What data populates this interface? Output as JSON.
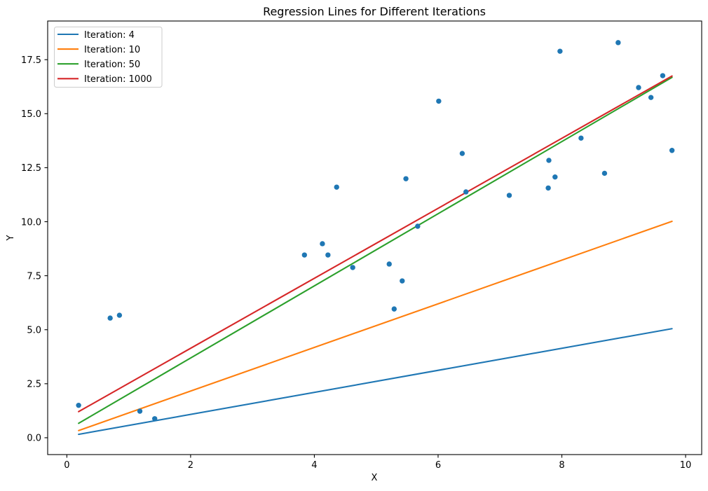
{
  "figure": {
    "background": "#ffffff"
  },
  "chart_data": {
    "type": "scatter",
    "title": "Regression Lines for Different Iterations",
    "xlabel": "X",
    "ylabel": "Y",
    "xlim": [
      -0.31,
      10.26
    ],
    "ylim": [
      -0.78,
      19.29
    ],
    "grid": false,
    "x_ticks": [
      0,
      2,
      4,
      6,
      8,
      10
    ],
    "x_tick_labels": [
      "0",
      "2",
      "4",
      "6",
      "8",
      "10"
    ],
    "y_ticks": [
      0,
      2.5,
      5,
      7.5,
      10,
      12.5,
      15,
      17.5
    ],
    "y_tick_labels": [
      "0.0",
      "2.5",
      "5.0",
      "7.5",
      "10.0",
      "12.5",
      "15.0",
      "17.5"
    ],
    "scatter": {
      "series_name": "data-points",
      "color": "#1f77b4",
      "marker_radius_px": 3.7,
      "points": [
        [
          0.19,
          1.5
        ],
        [
          0.7,
          5.54
        ],
        [
          0.85,
          5.67
        ],
        [
          1.18,
          1.23
        ],
        [
          1.42,
          0.88
        ],
        [
          3.84,
          8.46
        ],
        [
          4.13,
          8.98
        ],
        [
          4.22,
          8.46
        ],
        [
          4.36,
          11.6
        ],
        [
          4.62,
          7.88
        ],
        [
          5.21,
          8.04
        ],
        [
          5.29,
          5.96
        ],
        [
          5.42,
          7.26
        ],
        [
          5.48,
          11.99
        ],
        [
          5.67,
          9.79
        ],
        [
          6.01,
          15.58
        ],
        [
          6.39,
          13.16
        ],
        [
          6.45,
          11.38
        ],
        [
          7.15,
          11.22
        ],
        [
          7.78,
          11.56
        ],
        [
          7.79,
          12.84
        ],
        [
          7.89,
          12.07
        ],
        [
          7.97,
          17.89
        ],
        [
          8.31,
          13.87
        ],
        [
          8.69,
          12.24
        ],
        [
          8.91,
          18.29
        ],
        [
          9.24,
          16.21
        ],
        [
          9.44,
          15.75
        ],
        [
          9.63,
          16.76
        ],
        [
          9.78,
          13.3
        ]
      ]
    },
    "regression_lines": [
      {
        "label": "Iteration: 4",
        "color": "#1f77b4",
        "slope": 0.51,
        "intercept": 0.06,
        "x_range": [
          0.19,
          9.78
        ]
      },
      {
        "label": "Iteration: 10",
        "color": "#ff7f0e",
        "slope": 1.01,
        "intercept": 0.14,
        "x_range": [
          0.19,
          9.78
        ]
      },
      {
        "label": "Iteration: 50",
        "color": "#2ca02c",
        "slope": 1.67,
        "intercept": 0.35,
        "x_range": [
          0.19,
          9.78
        ]
      },
      {
        "label": "Iteration: 1000",
        "color": "#d62728",
        "slope": 1.62,
        "intercept": 0.9,
        "x_range": [
          0.19,
          9.78
        ]
      }
    ],
    "legend": {
      "position": "upper left",
      "entries": [
        "Iteration: 4",
        "Iteration: 10",
        "Iteration: 50",
        "Iteration: 1000"
      ]
    }
  }
}
